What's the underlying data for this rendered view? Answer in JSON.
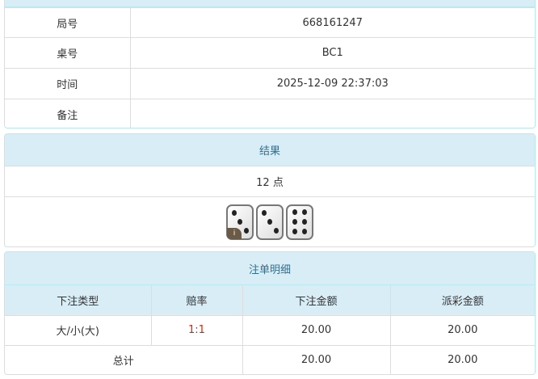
{
  "info": {
    "rows": [
      {
        "label": "局号",
        "value": "668161247"
      },
      {
        "label": "桌号",
        "value": "BC1"
      },
      {
        "label": "时间",
        "value": "2025-12-09 22:37:03"
      },
      {
        "label": "备注",
        "value": ""
      }
    ]
  },
  "result": {
    "title": "结果",
    "points": "12 点",
    "dice": [
      3,
      3,
      6
    ],
    "info_badge": "i"
  },
  "bets": {
    "title": "注单明细",
    "headers": [
      "下注类型",
      "赔率",
      "下注金额",
      "派彩金额"
    ],
    "rows": [
      {
        "type": "大/小(大)",
        "odds": "1:1",
        "amount": "20.00",
        "payout": "20.00"
      }
    ],
    "total": {
      "label": "总计",
      "amount": "20.00",
      "payout": "20.00"
    },
    "odds_color": "#d9230f"
  }
}
